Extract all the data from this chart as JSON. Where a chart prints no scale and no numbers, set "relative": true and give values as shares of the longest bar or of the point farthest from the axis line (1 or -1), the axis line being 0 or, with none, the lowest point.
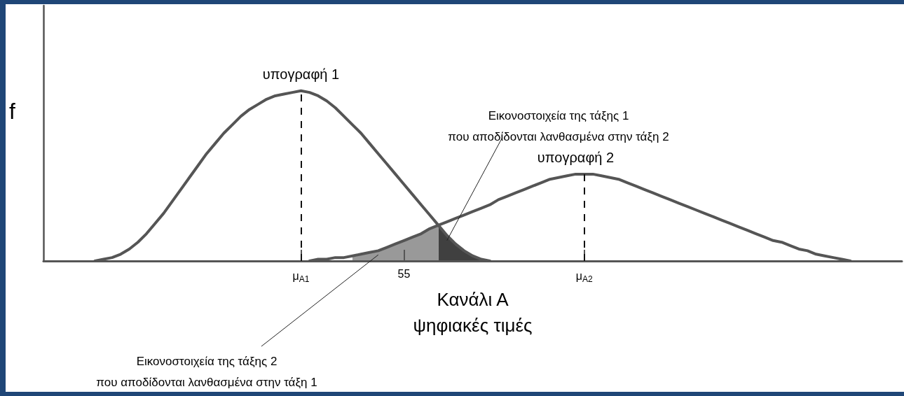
{
  "chart_data": {
    "type": "line",
    "relative": true,
    "marker": "none",
    "xlabel": "Κανάλι Α\nψηφιακές τιμές",
    "ylabel": "f",
    "categories": [
      null,
      null,
      null,
      null,
      null,
      null,
      null,
      null,
      null,
      null,
      null,
      null,
      null,
      null,
      null,
      null,
      null,
      null,
      null,
      null,
      null,
      null,
      null,
      null,
      null,
      null,
      null,
      null,
      null,
      null,
      "μ$_{A1}$",
      null,
      null,
      null,
      null,
      null,
      null,
      null,
      null,
      null,
      null,
      null,
      "55",
      null,
      null,
      null,
      null,
      null,
      null,
      null,
      null,
      null,
      null,
      null,
      null,
      null,
      null,
      null,
      null,
      null,
      null,
      null,
      null,
      "μ$_{A2}$",
      null,
      null,
      null,
      null,
      null,
      null,
      null,
      null,
      null,
      null,
      null,
      null,
      null,
      null,
      null,
      null,
      null,
      null,
      null,
      null,
      null,
      null,
      null,
      null,
      null,
      null,
      null,
      null,
      null,
      null,
      null,
      null,
      null,
      null,
      null,
      null,
      null
    ],
    "series": [
      {
        "name": "υπογραφή 1",
        "color": "#555555",
        "values": [
          null,
          null,
          null,
          null,
          null,
          null,
          0,
          0.01,
          0.02,
          0.04,
          0.07,
          0.11,
          0.16,
          0.22,
          0.28,
          0.35,
          0.42,
          0.49,
          0.56,
          0.63,
          0.69,
          0.75,
          0.8,
          0.85,
          0.89,
          0.92,
          0.95,
          0.97,
          0.98,
          0.99,
          1,
          0.99,
          0.97,
          0.94,
          0.9,
          0.85,
          0.8,
          0.75,
          0.69,
          0.63,
          0.57,
          0.51,
          0.45,
          0.39,
          0.33,
          0.27,
          0.21,
          0.15,
          0.1,
          0.06,
          0.03,
          0.01,
          0,
          null,
          null,
          null,
          null,
          null,
          null,
          null,
          null,
          null,
          null,
          null,
          null,
          null,
          null,
          null,
          null,
          null,
          null,
          null,
          null,
          null,
          null,
          null,
          null,
          null,
          null,
          null,
          null,
          null,
          null,
          null,
          null,
          null,
          null,
          null,
          null,
          null,
          null,
          null,
          null,
          null,
          null,
          null,
          null,
          null,
          null,
          null,
          null
        ]
      },
      {
        "name": "υπογραφή 2",
        "color": "#555555",
        "values": [
          null,
          null,
          null,
          null,
          null,
          null,
          null,
          null,
          null,
          null,
          null,
          null,
          null,
          null,
          null,
          null,
          null,
          null,
          null,
          null,
          null,
          null,
          null,
          null,
          null,
          null,
          null,
          null,
          null,
          null,
          null,
          0,
          0.01,
          0.01,
          0.02,
          0.02,
          0.03,
          0.04,
          0.05,
          0.06,
          0.08,
          0.1,
          0.12,
          0.14,
          0.16,
          0.19,
          0.21,
          0.23,
          0.25,
          0.27,
          0.29,
          0.31,
          0.33,
          0.36,
          0.38,
          0.4,
          0.42,
          0.44,
          0.46,
          0.48,
          0.49,
          0.5,
          0.51,
          0.51,
          0.51,
          0.5,
          0.49,
          0.48,
          0.46,
          0.44,
          0.42,
          0.4,
          0.38,
          0.36,
          0.34,
          0.32,
          0.3,
          0.28,
          0.26,
          0.24,
          0.22,
          0.2,
          0.18,
          0.16,
          0.14,
          0.12,
          0.11,
          0.09,
          0.07,
          0.06,
          0.04,
          0.03,
          0.02,
          0.01,
          0,
          null,
          null,
          null,
          null,
          null,
          null
        ]
      },
      {
        "type": "area",
        "color": "#404040",
        "values": [
          null,
          null,
          null,
          null,
          null,
          null,
          null,
          null,
          null,
          null,
          null,
          null,
          null,
          null,
          null,
          null,
          null,
          null,
          null,
          null,
          null,
          null,
          null,
          null,
          null,
          null,
          null,
          null,
          null,
          null,
          null,
          null,
          null,
          null,
          null,
          null,
          null,
          null,
          null,
          null,
          null,
          null,
          null,
          null,
          null,
          null,
          0.21,
          0.15,
          0.1,
          0.06,
          0.03,
          0.01,
          null,
          null,
          null,
          null,
          null,
          null,
          null,
          null,
          null,
          null,
          null,
          null,
          null,
          null,
          null,
          null,
          null,
          null,
          null,
          null,
          null,
          null,
          null,
          null,
          null,
          null,
          null,
          null,
          null,
          null,
          null,
          null,
          null,
          null,
          null,
          null,
          null,
          null,
          null,
          null,
          null,
          null,
          null,
          null,
          null,
          null,
          null,
          null,
          null
        ]
      },
      {
        "type": "area",
        "color": "#999999",
        "values": [
          null,
          null,
          null,
          null,
          null,
          null,
          null,
          null,
          null,
          null,
          null,
          null,
          null,
          null,
          null,
          null,
          null,
          null,
          null,
          null,
          null,
          null,
          null,
          null,
          null,
          null,
          null,
          null,
          null,
          null,
          null,
          null,
          null,
          null,
          null,
          null,
          0.03,
          0.04,
          0.05,
          0.06,
          0.08,
          0.1,
          0.12,
          0.14,
          0.16,
          0.19,
          0.21,
          null,
          null,
          null,
          null,
          null,
          null,
          null,
          null,
          null,
          null,
          null,
          null,
          null,
          null,
          null,
          null,
          null,
          null,
          null,
          null,
          null,
          null,
          null,
          null,
          null,
          null,
          null,
          null,
          null,
          null,
          null,
          null,
          null,
          null,
          null,
          null,
          null,
          null,
          null,
          null,
          null,
          null,
          null,
          null,
          null,
          null,
          null,
          null,
          null,
          null,
          null,
          null,
          null,
          null
        ]
      }
    ],
    "ref_lines": [
      {
        "axis": "x",
        "value": "μ$_{A1}$",
        "line_style": "dashed",
        "color": "#111111"
      },
      {
        "axis": "x",
        "value": "μ$_{A2}$",
        "line_style": "dashed",
        "color": "#111111"
      }
    ],
    "annotations": [
      "Εικονοστοιχεία της τάξης 1\nπου αποδίδονται λανθασμένα στην τάξη 2",
      "Εικονοστοιχεία της τάξης 2\nπου αποδίδονται λανθασμένα στην τάξη 1"
    ]
  }
}
